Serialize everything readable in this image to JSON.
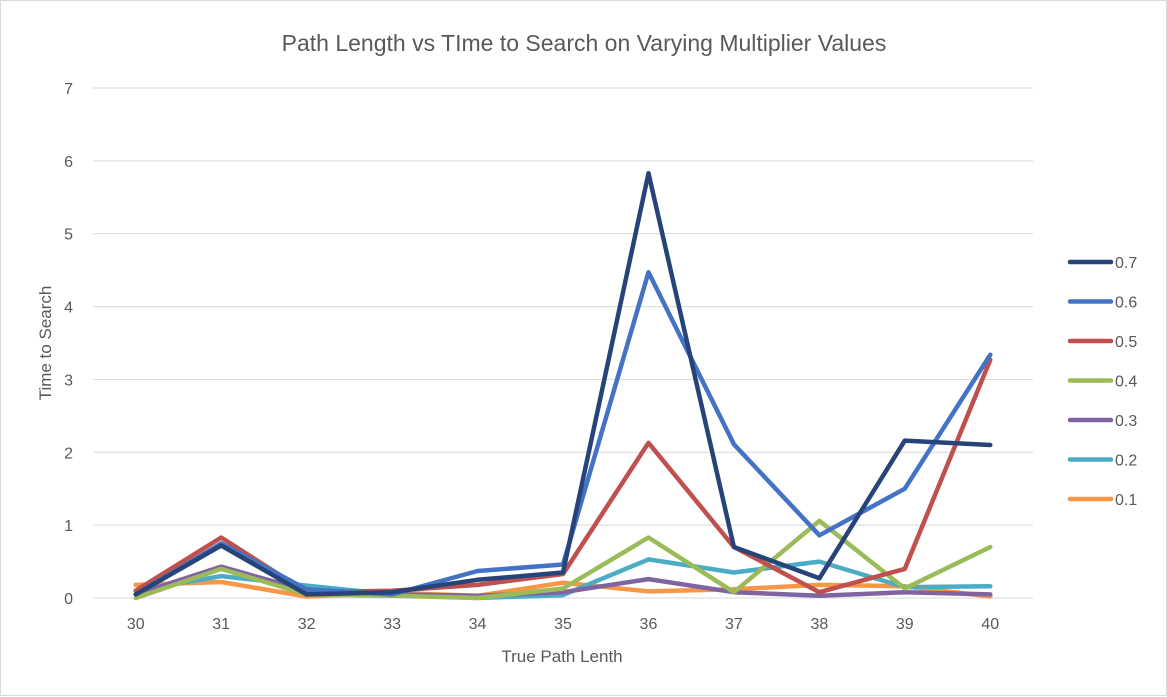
{
  "chart_data": {
    "type": "line",
    "title": "Path Length vs TIme to Search on Varying Multiplier Values",
    "xlabel": "True Path Lenth",
    "ylabel": "Time to Search",
    "categories": [
      "30",
      "31",
      "32",
      "33",
      "34",
      "35",
      "36",
      "37",
      "38",
      "39",
      "40"
    ],
    "ylim": [
      0,
      7
    ],
    "yticks": [
      0,
      1,
      2,
      3,
      4,
      5,
      6,
      7
    ],
    "grid": true,
    "legend_position": "right",
    "series": [
      {
        "name": "0.7",
        "color": "#264478",
        "values": [
          0.05,
          0.72,
          0.05,
          0.08,
          0.25,
          0.35,
          5.83,
          0.7,
          0.27,
          2.16,
          2.1
        ]
      },
      {
        "name": "0.6",
        "color": "#4472C4",
        "values": [
          0.05,
          0.75,
          0.12,
          0.05,
          0.37,
          0.46,
          4.47,
          2.11,
          0.86,
          1.5,
          3.34
        ]
      },
      {
        "name": "0.5",
        "color": "#C0504D",
        "values": [
          0.1,
          0.83,
          0.08,
          0.1,
          0.18,
          0.33,
          2.13,
          0.7,
          0.08,
          0.4,
          3.27
        ]
      },
      {
        "name": "0.4",
        "color": "#9BBB59",
        "values": [
          0.0,
          0.4,
          0.05,
          0.03,
          0.0,
          0.13,
          0.83,
          0.08,
          1.06,
          0.13,
          0.7
        ]
      },
      {
        "name": "0.3",
        "color": "#8064A2",
        "values": [
          0.05,
          0.43,
          0.1,
          0.05,
          0.03,
          0.08,
          0.26,
          0.08,
          0.03,
          0.08,
          0.05
        ]
      },
      {
        "name": "0.2",
        "color": "#4BACC6",
        "values": [
          0.1,
          0.3,
          0.17,
          0.05,
          0.0,
          0.04,
          0.53,
          0.35,
          0.5,
          0.15,
          0.16
        ]
      },
      {
        "name": "0.1",
        "color": "#F79646",
        "values": [
          0.18,
          0.22,
          0.02,
          0.07,
          0.03,
          0.21,
          0.09,
          0.12,
          0.18,
          0.16,
          0.02
        ]
      }
    ]
  }
}
